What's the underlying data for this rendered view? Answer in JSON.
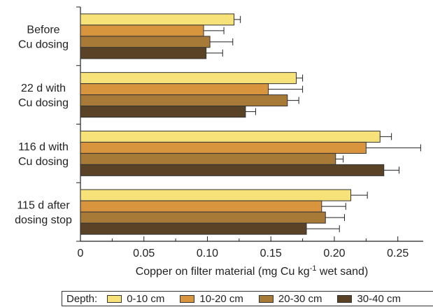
{
  "chart_data": {
    "type": "bar",
    "orientation": "horizontal",
    "categories": [
      [
        "Before",
        "Cu dosing"
      ],
      [
        "22 d with",
        "Cu dosing"
      ],
      [
        "116 d with",
        "Cu dosing"
      ],
      [
        "115 d after",
        "dosing stop"
      ]
    ],
    "series": [
      {
        "name": "0-10 cm",
        "color": "#f7e27a",
        "values": [
          0.121,
          0.17,
          0.236,
          0.213
        ],
        "errors": [
          0.005,
          0.005,
          0.009,
          0.013
        ]
      },
      {
        "name": "10-20 cm",
        "color": "#d9953e",
        "values": [
          0.097,
          0.148,
          0.225,
          0.19
        ],
        "errors": [
          0.016,
          0.027,
          0.043,
          0.019
        ]
      },
      {
        "name": "20-30 cm",
        "color": "#a87a38",
        "values": [
          0.102,
          0.163,
          0.201,
          0.193
        ],
        "errors": [
          0.018,
          0.009,
          0.006,
          0.015
        ]
      },
      {
        "name": "30-40 cm",
        "color": "#5a4226",
        "values": [
          0.099,
          0.13,
          0.239,
          0.178
        ],
        "errors": [
          0.013,
          0.008,
          0.012,
          0.026
        ]
      }
    ],
    "xlim": [
      0,
      0.27
    ],
    "xticks": [
      "0",
      "0.05",
      "0.10",
      "0.15",
      "0.20",
      "0.25"
    ],
    "xlabel_main": "Copper on filter material (mg Cu kg",
    "xlabel_sup": "-1",
    "xlabel_tail": " wet sand)",
    "ylabel": "",
    "title": "",
    "grid": false,
    "legend_placement": "bottom"
  },
  "legend": {
    "title": "Depth:",
    "items": [
      "0-10 cm",
      "10-20 cm",
      "20-30 cm",
      "30-40 cm"
    ]
  }
}
